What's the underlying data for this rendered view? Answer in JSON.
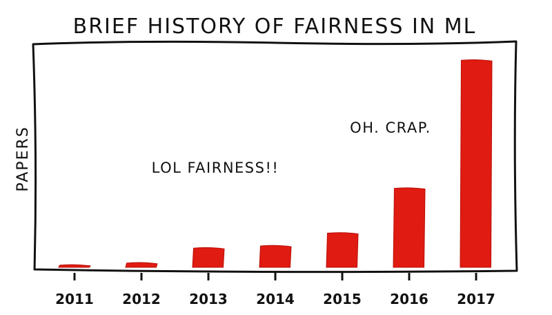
{
  "chart_data": {
    "type": "bar",
    "title": "BRIEF HISTORY OF FAIRNESS IN ML",
    "xlabel": "",
    "ylabel": "PAPERS",
    "categories": [
      "2011",
      "2012",
      "2013",
      "2014",
      "2015",
      "2016",
      "2017"
    ],
    "values": [
      1,
      2,
      9,
      10,
      16,
      37,
      97
    ],
    "ylim": [
      0,
      100
    ],
    "yticks_shown": false,
    "grid": false,
    "legend": "none",
    "bar_color": "#e01b12",
    "annotations": [
      {
        "text": "LOL FAIRNESS!!"
      },
      {
        "text": "OH. CRAP."
      }
    ]
  }
}
